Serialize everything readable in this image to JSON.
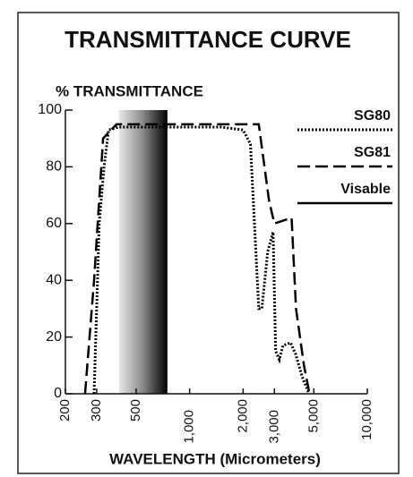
{
  "chart_data": {
    "type": "line",
    "title": "TRANSMITTANCE CURVE",
    "y_label": "% TRANSMITTANCE",
    "x_label": "WAVELENGTH (Micrometers)",
    "xscale": "log",
    "xlim": [
      200,
      10000
    ],
    "xticks": [
      200,
      300,
      500,
      {
        "value": 1000,
        "label": "1,000"
      },
      {
        "value": 2000,
        "label": "2,000"
      },
      {
        "value": 3000,
        "label": "3,000"
      },
      {
        "value": 5000,
        "label": "5,000"
      },
      {
        "value": 10000,
        "label": "10,000"
      }
    ],
    "ylim": [
      0,
      100
    ],
    "yticks": [
      0,
      20,
      40,
      60,
      80,
      100
    ],
    "legend": "upper right",
    "series": [
      {
        "name": "SG80",
        "color": "#000000",
        "style": "dotted",
        "x": [
          290,
          310,
          330,
          350,
          400,
          500,
          1000,
          1500,
          2000,
          2200,
          2450,
          2550,
          2750,
          2950,
          3050,
          3200,
          3350,
          3700,
          3950,
          4300,
          4700
        ],
        "values": [
          0,
          60,
          80,
          93,
          94,
          94,
          94,
          94,
          93,
          88,
          30,
          30,
          50,
          57,
          15,
          12,
          17,
          18,
          14,
          6,
          0
        ]
      },
      {
        "name": "SG81",
        "color": "#000000",
        "style": "dashed",
        "x": [
          258,
          290,
          326,
          388,
          500,
          1000,
          2000,
          2450,
          2800,
          3000,
          3750,
          3970,
          4400,
          4730
        ],
        "values": [
          0,
          40,
          90,
          95,
          95,
          95,
          95,
          95,
          68,
          60,
          62,
          30,
          10,
          0
        ]
      }
    ],
    "bands": [
      {
        "name": "Visable",
        "color": "#000000",
        "xrange": [
          400,
          750
        ]
      }
    ]
  }
}
